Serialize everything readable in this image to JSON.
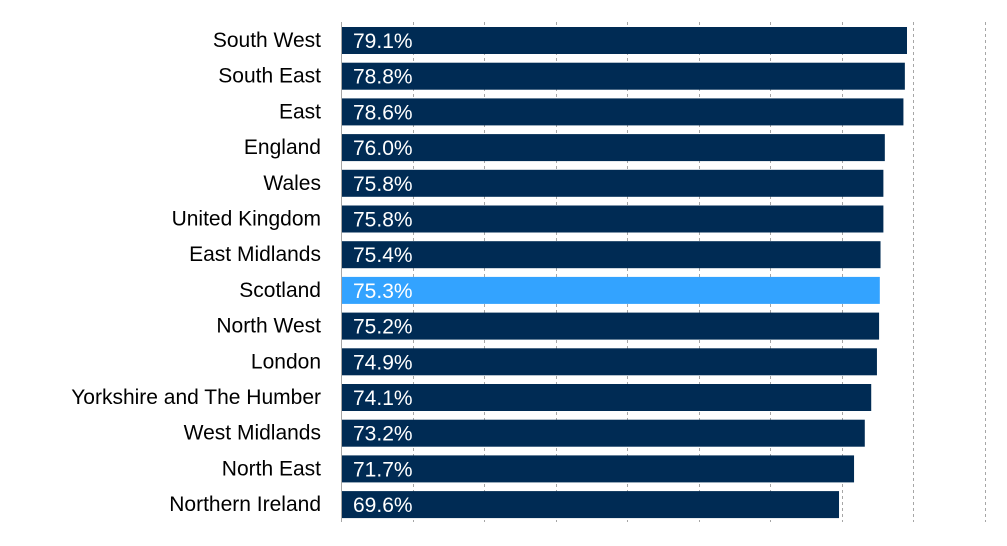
{
  "chart_data": {
    "type": "bar",
    "orientation": "horizontal",
    "categories": [
      "South West",
      "South East",
      "East",
      "England",
      "Wales",
      "United Kingdom",
      "East Midlands",
      "Scotland",
      "North West",
      "London",
      "Yorkshire and The Humber",
      "West Midlands",
      "North East",
      "Northern Ireland"
    ],
    "values": [
      79.1,
      78.8,
      78.6,
      76.0,
      75.8,
      75.8,
      75.4,
      75.3,
      75.2,
      74.9,
      74.1,
      73.2,
      71.7,
      69.6
    ],
    "value_labels": [
      "79.1%",
      "78.8%",
      "78.6%",
      "76.0%",
      "75.8%",
      "75.8%",
      "75.4%",
      "75.3%",
      "75.2%",
      "74.9%",
      "74.1%",
      "73.2%",
      "71.7%",
      "69.6%"
    ],
    "highlight": "Scotland",
    "xlim": [
      0,
      90
    ],
    "grid": true,
    "colors": {
      "bar": "#002b54",
      "highlight": "#33a3ff",
      "grid": "#a6a6a6",
      "label": "#000000",
      "value_text": "#ffffff"
    }
  }
}
